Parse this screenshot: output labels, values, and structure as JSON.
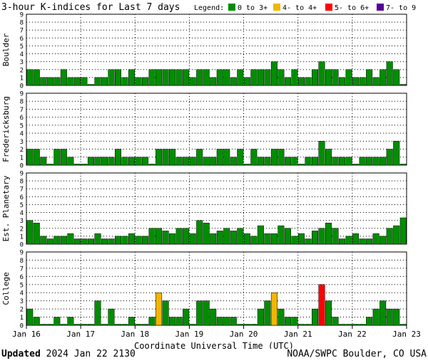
{
  "title": "3-hour K-indices for Last 7 days",
  "legend": {
    "label": "Legend:",
    "items": [
      {
        "text": "0 to 3+",
        "color": "#008e00"
      },
      {
        "text": "4- to 4+",
        "color": "#f2b600"
      },
      {
        "text": "5- to 6+",
        "color": "#ff0000"
      },
      {
        "text": "7- to 9",
        "color": "#550099"
      }
    ]
  },
  "footer": {
    "updated_label": "Updated",
    "updated_value": "2024 Jan 22 2130",
    "source": "NOAA/SWPC Boulder, CO USA"
  },
  "chart_data": [
    {
      "type": "bar",
      "title": "Boulder",
      "xlabel": "Coordinate Universal Time (UTC)",
      "ylim": [
        0,
        9
      ],
      "x_ticks": [
        "Jan 16",
        "Jan 17",
        "Jan 18",
        "Jan 19",
        "Jan 20",
        "Jan 21",
        "Jan 22",
        "Jan 23"
      ],
      "values": [
        2,
        2,
        1,
        1,
        1,
        2,
        1,
        1,
        1,
        0,
        1,
        1,
        2,
        2,
        1,
        2,
        1,
        1,
        2,
        2,
        2,
        2,
        2,
        2,
        1,
        2,
        2,
        1,
        2,
        2,
        1,
        2,
        1,
        2,
        2,
        2,
        3,
        2,
        1,
        2,
        1,
        1,
        2,
        3,
        2,
        2,
        1,
        2,
        1,
        1,
        2,
        1,
        2,
        3,
        2,
        0
      ]
    },
    {
      "type": "bar",
      "title": "Fredericksburg",
      "xlabel": "Coordinate Universal Time (UTC)",
      "ylim": [
        0,
        9
      ],
      "x_ticks": [
        "Jan 16",
        "Jan 17",
        "Jan 18",
        "Jan 19",
        "Jan 20",
        "Jan 21",
        "Jan 22",
        "Jan 23"
      ],
      "values": [
        2,
        2,
        1,
        0,
        2,
        2,
        1,
        0,
        0,
        1,
        1,
        1,
        1,
        2,
        1,
        1,
        1,
        1,
        0,
        2,
        2,
        2,
        1,
        1,
        1,
        2,
        1,
        1,
        2,
        2,
        1,
        2,
        0,
        2,
        1,
        1,
        2,
        2,
        1,
        1,
        0,
        1,
        1,
        3,
        2,
        1,
        1,
        1,
        0,
        1,
        1,
        1,
        1,
        2,
        3,
        0
      ]
    },
    {
      "type": "bar",
      "title": "Est. Planetary",
      "xlabel": "Coordinate Universal Time (UTC)",
      "ylim": [
        0,
        9
      ],
      "x_ticks": [
        "Jan 16",
        "Jan 17",
        "Jan 18",
        "Jan 19",
        "Jan 20",
        "Jan 21",
        "Jan 22",
        "Jan 23"
      ],
      "values": [
        3,
        2.67,
        1,
        0.67,
        1,
        1,
        1.33,
        0.67,
        0.67,
        0.67,
        1.33,
        0.67,
        0.67,
        1,
        1,
        1.33,
        1,
        1,
        2,
        2,
        1.67,
        1.33,
        2,
        2,
        1.33,
        3,
        2.67,
        1.33,
        1.67,
        2,
        1.67,
        2,
        1.33,
        1,
        2.33,
        1.33,
        1.33,
        2.33,
        2,
        1,
        1.33,
        0.67,
        1.67,
        2,
        2.67,
        2,
        0.67,
        1,
        1.33,
        0.67,
        0.67,
        1.33,
        1,
        2,
        2.33,
        3.33
      ]
    },
    {
      "type": "bar",
      "title": "College",
      "xlabel": "Coordinate Universal Time (UTC)",
      "ylim": [
        0,
        9
      ],
      "x_ticks": [
        "Jan 16",
        "Jan 17",
        "Jan 18",
        "Jan 19",
        "Jan 20",
        "Jan 21",
        "Jan 22",
        "Jan 23"
      ],
      "values": [
        2,
        1,
        0,
        0,
        1,
        0,
        1,
        0,
        0,
        0,
        3,
        0,
        2,
        0,
        0,
        1,
        0,
        0,
        1,
        4,
        3,
        1,
        1,
        2,
        0,
        3,
        3,
        2,
        1,
        1,
        1,
        0,
        0,
        0,
        2,
        3,
        4,
        2,
        1,
        1,
        0,
        0,
        2,
        5,
        3,
        1,
        0,
        0,
        0,
        0,
        1,
        2,
        3,
        2,
        2,
        0
      ]
    }
  ]
}
